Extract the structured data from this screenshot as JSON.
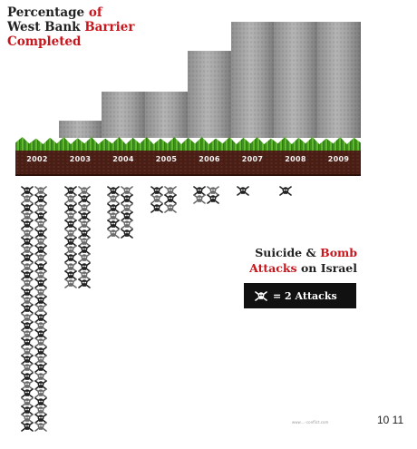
{
  "title": {
    "line1_a": "Percentage ",
    "line1_b": "of",
    "line2_a": "West Bank ",
    "line2_b": "Barrier",
    "line3": "Completed"
  },
  "legend": {
    "title_a": "Suicide & ",
    "title_b": "Bomb",
    "title_c": "Attacks",
    "title_d": " on Israel",
    "key_label": "= 2 Attacks"
  },
  "footer": {
    "url": "www....-conflict.com",
    "page_numbers": "10 11"
  },
  "chart_data": [
    {
      "type": "bar",
      "categories": [
        "2002",
        "2003",
        "2004",
        "2005",
        "2006",
        "2007",
        "2008",
        "2009"
      ],
      "values": [
        0,
        15,
        40,
        40,
        75,
        100,
        100,
        100
      ],
      "ylim": [
        0,
        100
      ],
      "title": "Percentage of West Bank Barrier Completed",
      "grid": false,
      "colors": {
        "wall": "#a4a4a4",
        "grass": "#4fa523",
        "soil": "#4a1e14",
        "accent": "#c8161d"
      }
    },
    {
      "type": "bar",
      "categories": [
        "2002",
        "2003",
        "2004",
        "2005",
        "2006",
        "2007",
        "2008",
        "2009"
      ],
      "values": [
        58,
        24,
        12,
        6,
        4,
        1,
        1,
        0
      ],
      "value_unit": "icons (each = 2 attacks)",
      "title": "Suicide & Bomb Attacks on Israel",
      "legend": "= 2 Attacks",
      "grid": false
    }
  ]
}
